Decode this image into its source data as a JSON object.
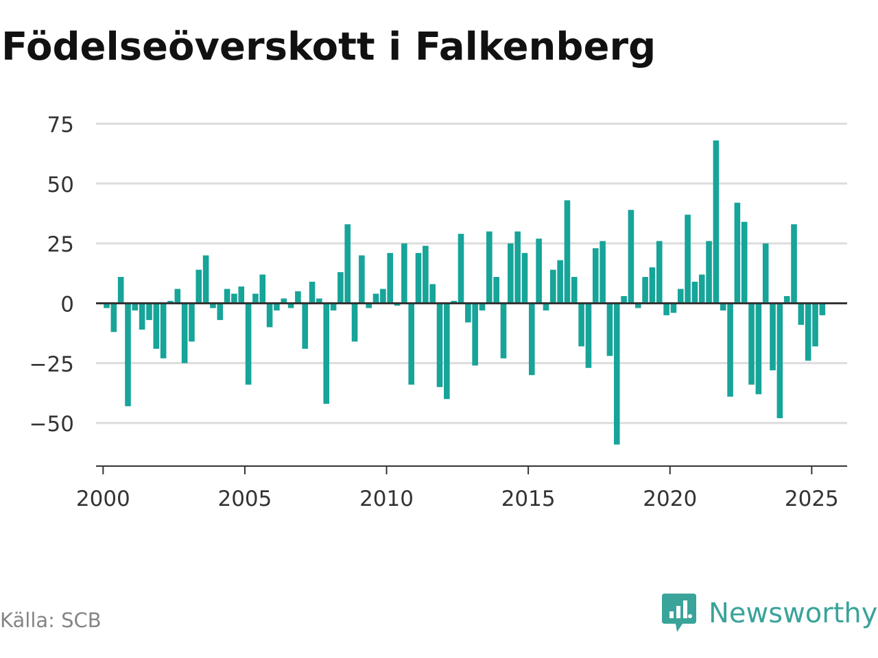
{
  "title": "Födelseöverskott i Falkenberg",
  "source": "Källa: SCB",
  "brand": {
    "name": "Newsworthy",
    "logo_icon": "newsworthy-logo-icon"
  },
  "colors": {
    "bar": "#17a499",
    "grid": "#dcdcdc",
    "axis": "#333333",
    "text": "#333333",
    "brand": "#3aa39a"
  },
  "chart_data": {
    "type": "bar",
    "xlabel": "",
    "ylabel": "",
    "ylim": [
      -68,
      78
    ],
    "yticks": [
      75,
      50,
      25,
      0,
      -25,
      -50
    ],
    "ytick_labels": [
      "75",
      "50",
      "25",
      "0",
      "−25",
      "−50"
    ],
    "xlim": [
      1999.75,
      2026.25
    ],
    "xticks": [
      2000,
      2005,
      2010,
      2015,
      2020,
      2025
    ],
    "xtick_labels": [
      "2000",
      "2005",
      "2010",
      "2015",
      "2020",
      "2025"
    ],
    "grid": true,
    "legend": "none",
    "period": "monthly series, one bar per quarter",
    "series": [
      {
        "start": "2000 Q1",
        "values": [
          -2,
          -12,
          11,
          -43,
          -3,
          -11,
          -7,
          -19,
          -23,
          1,
          6,
          -25,
          -16,
          14,
          20,
          -2,
          -7,
          6,
          4,
          7,
          -34,
          4,
          12,
          -10,
          -3,
          2,
          -2,
          5,
          -19,
          9,
          2,
          -42,
          -3,
          13,
          33,
          -16,
          20,
          -2,
          4,
          6,
          21,
          -1,
          25,
          -34,
          21,
          24,
          8,
          -35,
          -40,
          1,
          29,
          -8,
          -26,
          -3,
          30,
          11,
          -23,
          25,
          30,
          21,
          -30,
          27,
          -3,
          14,
          18,
          43,
          11,
          -18,
          -27,
          23,
          26,
          -22,
          -59,
          3,
          39,
          -2,
          11,
          15,
          26,
          -5,
          -4,
          6,
          37,
          9,
          12,
          26,
          68,
          -3,
          -39,
          42,
          34,
          -34,
          -38,
          25,
          -28,
          -48,
          3,
          33,
          -9,
          -24,
          -18,
          -5
        ]
      }
    ]
  }
}
